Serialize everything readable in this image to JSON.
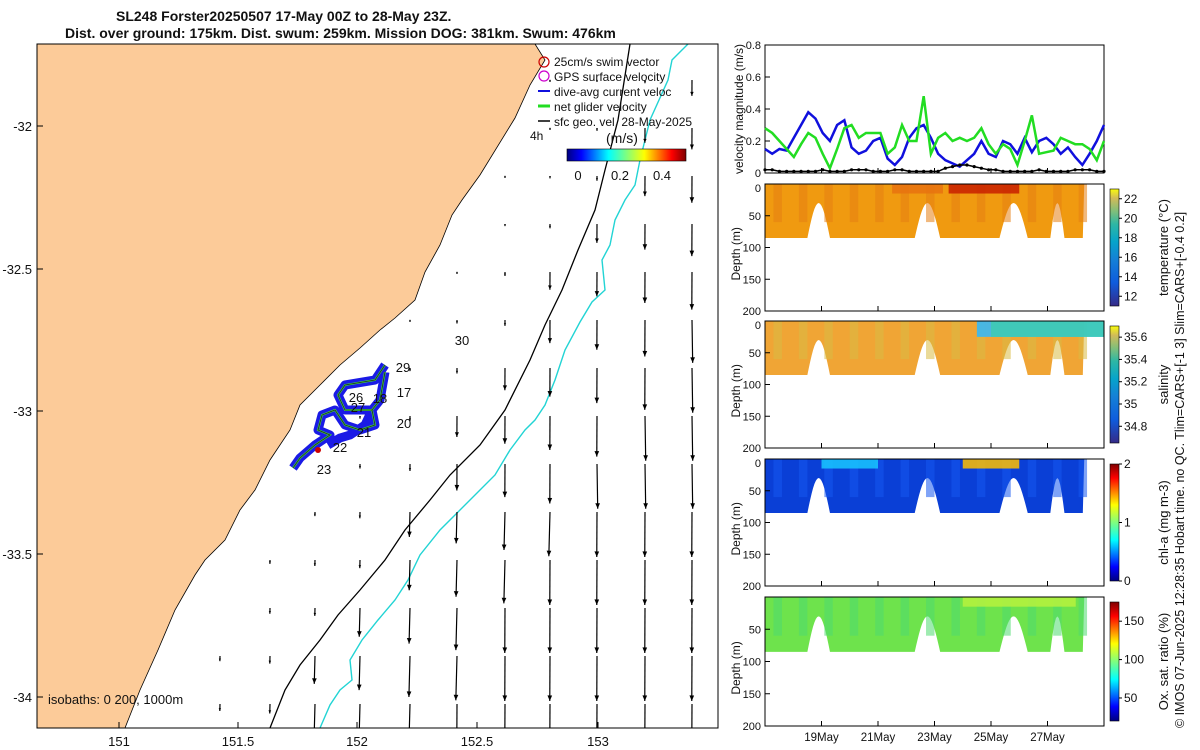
{
  "title": {
    "line1": "SL248 Forster20250507 17-May 00Z to 28-May 23Z.",
    "line2": "Dist. over ground: 175km. Dist. swum: 259km. Mission DOG: 381km. Swum: 476km"
  },
  "map": {
    "legend": [
      {
        "label": "25cm/s swim vector",
        "color": "#cc0000"
      },
      {
        "label": "GPS surface velocity",
        "color": "#cc00cc"
      },
      {
        "label": "dive-avg current veloc",
        "color": "#1010dd"
      },
      {
        "label": "net glider velocity",
        "color": "#22dd22"
      },
      {
        "label": "sfc geo. vel. 28-May-2025",
        "color": "#000000"
      }
    ],
    "time_label": "4h",
    "colorbar_unit": "(m/s)",
    "colorbar_ticks": [
      "0",
      "0.2",
      "0.4"
    ],
    "x_ticks": [
      "151",
      "151.5",
      "152",
      "152.5",
      "153"
    ],
    "y_ticks": [
      "-32",
      "-32.5",
      "-33",
      "-33.5",
      "-34"
    ],
    "isobath_label": "isobaths: 0  200, 1000m",
    "day_labels": [
      "17",
      "18",
      "20",
      "21",
      "22",
      "23",
      "26",
      "27",
      "29",
      "30"
    ],
    "colors": {
      "land": "#fccb99",
      "isobath200": "#000000",
      "isobath1000": "#22d4d4"
    }
  },
  "chart_data": [
    {
      "type": "line",
      "ylabel": "velocity magnitude (m/s)",
      "ylim": [
        0,
        0.8
      ],
      "yticks": [
        "0",
        "0.2",
        "0.4",
        "0.6",
        "0.8"
      ],
      "x_range_days": [
        17,
        29
      ],
      "series": [
        {
          "name": "dive-avg current",
          "color": "#1010dd",
          "values": [
            0.15,
            0.12,
            0.15,
            0.14,
            0.22,
            0.3,
            0.38,
            0.34,
            0.25,
            0.2,
            0.3,
            0.33,
            0.16,
            0.12,
            0.14,
            0.2,
            0.22,
            0.09,
            0.05,
            0.1,
            0.22,
            0.28,
            0.3,
            0.22,
            0.12,
            0.08,
            0.06,
            0.04,
            0.08,
            0.12,
            0.2,
            0.12,
            0.1,
            0.2,
            0.18,
            0.12,
            0.22,
            0.13,
            0.2,
            0.22,
            0.18,
            0.12,
            0.16,
            0.1,
            0.05,
            0.12,
            0.2,
            0.3
          ]
        },
        {
          "name": "net glider velocity",
          "color": "#22dd22",
          "values": [
            0.28,
            0.25,
            0.2,
            0.15,
            0.1,
            0.18,
            0.25,
            0.22,
            0.12,
            0.03,
            0.15,
            0.28,
            0.3,
            0.22,
            0.25,
            0.25,
            0.25,
            0.12,
            0.16,
            0.3,
            0.2,
            0.2,
            0.48,
            0.12,
            0.22,
            0.25,
            0.2,
            0.22,
            0.2,
            0.22,
            0.28,
            0.18,
            0.12,
            0.18,
            0.15,
            0.05,
            0.2,
            0.36,
            0.12,
            0.13,
            0.14,
            0.22,
            0.2,
            0.18,
            0.18,
            0.15,
            0.08,
            0.2
          ]
        },
        {
          "name": "sfc geo vel",
          "color": "#000000",
          "values": [
            0.02,
            0.02,
            0.01,
            0.01,
            0.01,
            0.01,
            0.01,
            0.01,
            0.02,
            0.01,
            0.01,
            0.01,
            0.02,
            0.02,
            0.02,
            0.01,
            0.01,
            0.01,
            0.02,
            0.02,
            0.01,
            0.01,
            0.01,
            0.01,
            0.01,
            0.03,
            0.04,
            0.05,
            0.05,
            0.04,
            0.03,
            0.02,
            0.02,
            0.01,
            0.01,
            0.01,
            0.01,
            0.01,
            0.02,
            0.01,
            0.01,
            0.01,
            0.01,
            0.02,
            0.02,
            0.02,
            0.01,
            0.01
          ]
        }
      ]
    },
    {
      "type": "heatmap",
      "label": "temperature (°C)",
      "ylabel": "Depth (m)",
      "ylim": [
        0,
        200
      ],
      "yticks": [
        "0",
        "50",
        "100",
        "150",
        "200"
      ],
      "clim": [
        11,
        23
      ],
      "cbar_ticks": [
        "12",
        "14",
        "16",
        "18",
        "20",
        "22"
      ],
      "base_value": 20.2,
      "high_value": 22.5
    },
    {
      "type": "heatmap",
      "label": "salinity",
      "ylabel": "Depth (m)",
      "ylim": [
        0,
        200
      ],
      "yticks": [
        "0",
        "50",
        "100",
        "150",
        "200"
      ],
      "clim": [
        34.65,
        35.7
      ],
      "cbar_ticks": [
        "34.8",
        "35",
        "35.2",
        "35.4",
        "35.6"
      ],
      "base_value": 35.5,
      "high_value": 35.2
    },
    {
      "type": "heatmap",
      "label": "chl-a (mg m-3)",
      "ylabel": "Depth (m)",
      "ylim": [
        0,
        200
      ],
      "yticks": [
        "0",
        "50",
        "100",
        "150",
        "200"
      ],
      "clim": [
        0,
        2
      ],
      "cbar_ticks": [
        "0",
        "1",
        "2"
      ],
      "base_value": 0.35,
      "high_value": 1.4
    },
    {
      "type": "heatmap",
      "label": "Ox. sat. ratio (%)",
      "ylabel": "Depth (m)",
      "ylim": [
        0,
        200
      ],
      "yticks": [
        "50",
        "100",
        "150",
        "200"
      ],
      "clim": [
        20,
        175
      ],
      "cbar_ticks": [
        "50",
        "100",
        "150"
      ],
      "base_value": 115,
      "high_value": 125
    }
  ],
  "time_axis": {
    "ticks": [
      "19May",
      "21May",
      "23May",
      "25May",
      "27May"
    ],
    "tick_days": [
      19,
      21,
      23,
      25,
      27
    ]
  },
  "side_note": "© IMOS 07-Jun-2025 12:28:35 Hobart time. no QC. Tlim=CARS+[-1 3] Slim=CARS+[-0.4 0.2]"
}
